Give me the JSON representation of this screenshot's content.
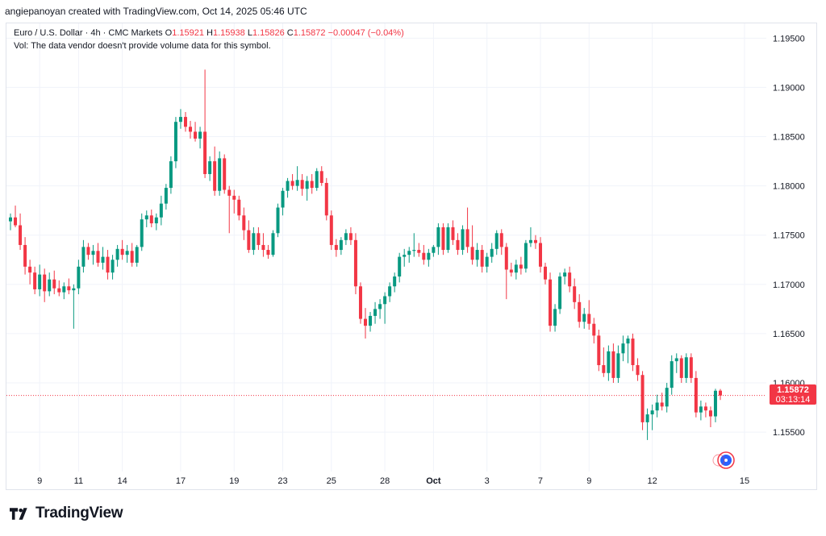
{
  "attribution": "angiepanoyan created with TradingView.com, Oct 14, 2025 05:46 UTC",
  "legend": {
    "symbol": "Euro / U.S. Dollar · 4h · CMC Markets",
    "o_label": "O",
    "o_value": "1.15921",
    "h_label": "H",
    "h_value": "1.15938",
    "l_label": "L",
    "l_value": "1.15826",
    "c_label": "C",
    "c_value": "1.15872",
    "change": "−0.00047 (−0.04%)",
    "volume_note": "Vol: The data vendor doesn't provide volume data for this symbol."
  },
  "price_tag": {
    "price": "1.15872",
    "countdown": "03:13:14"
  },
  "footer": {
    "brand": "TradingView"
  },
  "colors": {
    "up": "#089981",
    "down": "#f23645",
    "grid": "#f0f3fa",
    "text": "#131722"
  },
  "chart_data": {
    "type": "candlestick",
    "ylim": [
      1.151,
      1.1965
    ],
    "x_tick_labels": [
      "9",
      "11",
      "14",
      "17",
      "19",
      "23",
      "25",
      "28",
      "Oct",
      "3",
      "7",
      "9",
      "12",
      "15"
    ],
    "y_tick_labels": [
      "1.15500",
      "1.16000",
      "1.16500",
      "1.17000",
      "1.17500",
      "1.18000",
      "1.18500",
      "1.19000",
      "1.19500"
    ],
    "last_price": 1.15872,
    "candles": [
      {
        "day": "Sep 8",
        "o": 1.1764,
        "h": 1.1772,
        "l": 1.1755,
        "c": 1.1768
      },
      {
        "day": "Sep 8",
        "o": 1.1768,
        "h": 1.178,
        "l": 1.1758,
        "c": 1.176
      },
      {
        "day": "Sep 8",
        "o": 1.176,
        "h": 1.1772,
        "l": 1.1735,
        "c": 1.174
      },
      {
        "day": "Sep 8",
        "o": 1.174,
        "h": 1.1748,
        "l": 1.171,
        "c": 1.1718
      },
      {
        "day": "Sep 8",
        "o": 1.1718,
        "h": 1.1725,
        "l": 1.17,
        "c": 1.1712
      },
      {
        "day": "Sep 8",
        "o": 1.1712,
        "h": 1.1718,
        "l": 1.169,
        "c": 1.1695
      },
      {
        "day": "Sep 9",
        "o": 1.1695,
        "h": 1.172,
        "l": 1.1688,
        "c": 1.171
      },
      {
        "day": "Sep 9",
        "o": 1.171,
        "h": 1.1716,
        "l": 1.1682,
        "c": 1.1693
      },
      {
        "day": "Sep 9",
        "o": 1.1693,
        "h": 1.1712,
        "l": 1.1688,
        "c": 1.1705
      },
      {
        "day": "Sep 9",
        "o": 1.1705,
        "h": 1.1714,
        "l": 1.169,
        "c": 1.1696
      },
      {
        "day": "Sep 10",
        "o": 1.1696,
        "h": 1.1704,
        "l": 1.1688,
        "c": 1.1692
      },
      {
        "day": "Sep 10",
        "o": 1.1692,
        "h": 1.1702,
        "l": 1.1685,
        "c": 1.1698
      },
      {
        "day": "Sep 10",
        "o": 1.1698,
        "h": 1.1706,
        "l": 1.169,
        "c": 1.1694
      },
      {
        "day": "Sep 10",
        "o": 1.1694,
        "h": 1.17,
        "l": 1.1655,
        "c": 1.1696
      },
      {
        "day": "Sep 11",
        "o": 1.1696,
        "h": 1.1725,
        "l": 1.169,
        "c": 1.1718
      },
      {
        "day": "Sep 11",
        "o": 1.1718,
        "h": 1.1745,
        "l": 1.1712,
        "c": 1.1738
      },
      {
        "day": "Sep 11",
        "o": 1.1738,
        "h": 1.1742,
        "l": 1.1725,
        "c": 1.173
      },
      {
        "day": "Sep 11",
        "o": 1.173,
        "h": 1.174,
        "l": 1.172,
        "c": 1.1734
      },
      {
        "day": "Sep 12",
        "o": 1.1734,
        "h": 1.1742,
        "l": 1.1718,
        "c": 1.1722
      },
      {
        "day": "Sep 12",
        "o": 1.1722,
        "h": 1.1738,
        "l": 1.1715,
        "c": 1.1728
      },
      {
        "day": "Sep 12",
        "o": 1.1728,
        "h": 1.1735,
        "l": 1.1705,
        "c": 1.1712
      },
      {
        "day": "Sep 12",
        "o": 1.1712,
        "h": 1.173,
        "l": 1.1705,
        "c": 1.1725
      },
      {
        "day": "Sep 12",
        "o": 1.1725,
        "h": 1.174,
        "l": 1.1718,
        "c": 1.1736
      },
      {
        "day": "Sep 15",
        "o": 1.1736,
        "h": 1.1745,
        "l": 1.1725,
        "c": 1.173
      },
      {
        "day": "Sep 15",
        "o": 1.173,
        "h": 1.174,
        "l": 1.1722,
        "c": 1.1734
      },
      {
        "day": "Sep 15",
        "o": 1.1734,
        "h": 1.1742,
        "l": 1.1718,
        "c": 1.1722
      },
      {
        "day": "Sep 15",
        "o": 1.1722,
        "h": 1.174,
        "l": 1.1718,
        "c": 1.1738
      },
      {
        "day": "Sep 15",
        "o": 1.1738,
        "h": 1.1772,
        "l": 1.1734,
        "c": 1.1766
      },
      {
        "day": "Sep 16",
        "o": 1.1766,
        "h": 1.1775,
        "l": 1.1758,
        "c": 1.177
      },
      {
        "day": "Sep 16",
        "o": 1.177,
        "h": 1.1776,
        "l": 1.1758,
        "c": 1.1762
      },
      {
        "day": "Sep 16",
        "o": 1.1762,
        "h": 1.1772,
        "l": 1.1755,
        "c": 1.1768
      },
      {
        "day": "Sep 16",
        "o": 1.1768,
        "h": 1.179,
        "l": 1.176,
        "c": 1.1782
      },
      {
        "day": "Sep 16",
        "o": 1.1782,
        "h": 1.1802,
        "l": 1.1776,
        "c": 1.1798
      },
      {
        "day": "Sep 16",
        "o": 1.1798,
        "h": 1.183,
        "l": 1.1792,
        "c": 1.1825
      },
      {
        "day": "Sep 16",
        "o": 1.1825,
        "h": 1.187,
        "l": 1.1818,
        "c": 1.1865
      },
      {
        "day": "Sep 17",
        "o": 1.1865,
        "h": 1.1878,
        "l": 1.1858,
        "c": 1.187
      },
      {
        "day": "Sep 17",
        "o": 1.187,
        "h": 1.1875,
        "l": 1.1855,
        "c": 1.186
      },
      {
        "day": "Sep 17",
        "o": 1.186,
        "h": 1.1866,
        "l": 1.1848,
        "c": 1.1855
      },
      {
        "day": "Sep 17",
        "o": 1.1855,
        "h": 1.1865,
        "l": 1.1845,
        "c": 1.1848
      },
      {
        "day": "Sep 17",
        "o": 1.1848,
        "h": 1.186,
        "l": 1.1838,
        "c": 1.1855
      },
      {
        "day": "Sep 17",
        "o": 1.1855,
        "h": 1.1918,
        "l": 1.1808,
        "c": 1.1812
      },
      {
        "day": "Sep 18",
        "o": 1.1812,
        "h": 1.183,
        "l": 1.1805,
        "c": 1.1825
      },
      {
        "day": "Sep 18",
        "o": 1.1825,
        "h": 1.184,
        "l": 1.179,
        "c": 1.1795
      },
      {
        "day": "Sep 18",
        "o": 1.1795,
        "h": 1.1835,
        "l": 1.179,
        "c": 1.1828
      },
      {
        "day": "Sep 18",
        "o": 1.1828,
        "h": 1.1832,
        "l": 1.1792,
        "c": 1.1796
      },
      {
        "day": "Sep 18",
        "o": 1.1796,
        "h": 1.18,
        "l": 1.1752,
        "c": 1.179
      },
      {
        "day": "Sep 19",
        "o": 1.179,
        "h": 1.1796,
        "l": 1.1772,
        "c": 1.1786
      },
      {
        "day": "Sep 19",
        "o": 1.1786,
        "h": 1.179,
        "l": 1.1765,
        "c": 1.177
      },
      {
        "day": "Sep 19",
        "o": 1.177,
        "h": 1.1778,
        "l": 1.1745,
        "c": 1.1755
      },
      {
        "day": "Sep 19",
        "o": 1.1755,
        "h": 1.1765,
        "l": 1.1732,
        "c": 1.1735
      },
      {
        "day": "Sep 19",
        "o": 1.1735,
        "h": 1.1758,
        "l": 1.173,
        "c": 1.1752
      },
      {
        "day": "Sep 22",
        "o": 1.1752,
        "h": 1.1758,
        "l": 1.1735,
        "c": 1.174
      },
      {
        "day": "Sep 22",
        "o": 1.174,
        "h": 1.1752,
        "l": 1.1728,
        "c": 1.1735
      },
      {
        "day": "Sep 22",
        "o": 1.1735,
        "h": 1.174,
        "l": 1.1726,
        "c": 1.173
      },
      {
        "day": "Sep 22",
        "o": 1.173,
        "h": 1.1755,
        "l": 1.1728,
        "c": 1.1752
      },
      {
        "day": "Sep 22",
        "o": 1.1752,
        "h": 1.1782,
        "l": 1.1748,
        "c": 1.1778
      },
      {
        "day": "Sep 23",
        "o": 1.1778,
        "h": 1.1798,
        "l": 1.177,
        "c": 1.1795
      },
      {
        "day": "Sep 23",
        "o": 1.1795,
        "h": 1.1808,
        "l": 1.1788,
        "c": 1.1805
      },
      {
        "day": "Sep 23",
        "o": 1.1805,
        "h": 1.1812,
        "l": 1.1796,
        "c": 1.18
      },
      {
        "day": "Sep 23",
        "o": 1.18,
        "h": 1.182,
        "l": 1.1795,
        "c": 1.1806
      },
      {
        "day": "Sep 23",
        "o": 1.1806,
        "h": 1.1812,
        "l": 1.179,
        "c": 1.1797
      },
      {
        "day": "Sep 24",
        "o": 1.1797,
        "h": 1.181,
        "l": 1.1785,
        "c": 1.1805
      },
      {
        "day": "Sep 24",
        "o": 1.1805,
        "h": 1.1812,
        "l": 1.1792,
        "c": 1.1798
      },
      {
        "day": "Sep 24",
        "o": 1.1798,
        "h": 1.1818,
        "l": 1.1795,
        "c": 1.1815
      },
      {
        "day": "Sep 24",
        "o": 1.1815,
        "h": 1.182,
        "l": 1.18,
        "c": 1.1803
      },
      {
        "day": "Sep 24",
        "o": 1.1803,
        "h": 1.1808,
        "l": 1.1765,
        "c": 1.177
      },
      {
        "day": "Sep 25",
        "o": 1.177,
        "h": 1.1775,
        "l": 1.1735,
        "c": 1.174
      },
      {
        "day": "Sep 25",
        "o": 1.174,
        "h": 1.1746,
        "l": 1.1728,
        "c": 1.1735
      },
      {
        "day": "Sep 25",
        "o": 1.1735,
        "h": 1.1748,
        "l": 1.173,
        "c": 1.1745
      },
      {
        "day": "Sep 25",
        "o": 1.1745,
        "h": 1.1756,
        "l": 1.174,
        "c": 1.1752
      },
      {
        "day": "Sep 25",
        "o": 1.1752,
        "h": 1.1758,
        "l": 1.174,
        "c": 1.1745
      },
      {
        "day": "Sep 25",
        "o": 1.1745,
        "h": 1.1752,
        "l": 1.169,
        "c": 1.1698
      },
      {
        "day": "Sep 26",
        "o": 1.1698,
        "h": 1.1702,
        "l": 1.166,
        "c": 1.1665
      },
      {
        "day": "Sep 26",
        "o": 1.1665,
        "h": 1.1676,
        "l": 1.1645,
        "c": 1.1658
      },
      {
        "day": "Sep 26",
        "o": 1.1658,
        "h": 1.1672,
        "l": 1.1652,
        "c": 1.1668
      },
      {
        "day": "Sep 26",
        "o": 1.1668,
        "h": 1.1682,
        "l": 1.166,
        "c": 1.1675
      },
      {
        "day": "Sep 26",
        "o": 1.1675,
        "h": 1.1685,
        "l": 1.1665,
        "c": 1.168
      },
      {
        "day": "Sep 29",
        "o": 1.168,
        "h": 1.1692,
        "l": 1.166,
        "c": 1.1688
      },
      {
        "day": "Sep 29",
        "o": 1.1688,
        "h": 1.1702,
        "l": 1.1682,
        "c": 1.1698
      },
      {
        "day": "Sep 29",
        "o": 1.1698,
        "h": 1.1712,
        "l": 1.1692,
        "c": 1.1708
      },
      {
        "day": "Sep 29",
        "o": 1.1708,
        "h": 1.1732,
        "l": 1.1702,
        "c": 1.1728
      },
      {
        "day": "Sep 29",
        "o": 1.1728,
        "h": 1.1736,
        "l": 1.1718,
        "c": 1.173
      },
      {
        "day": "Sep 30",
        "o": 1.173,
        "h": 1.1738,
        "l": 1.1722,
        "c": 1.1734
      },
      {
        "day": "Sep 30",
        "o": 1.1734,
        "h": 1.1752,
        "l": 1.1728,
        "c": 1.1735
      },
      {
        "day": "Sep 30",
        "o": 1.1735,
        "h": 1.1742,
        "l": 1.1728,
        "c": 1.1732
      },
      {
        "day": "Sep 30",
        "o": 1.1732,
        "h": 1.174,
        "l": 1.172,
        "c": 1.1725
      },
      {
        "day": "Sep 30",
        "o": 1.1725,
        "h": 1.1736,
        "l": 1.1718,
        "c": 1.1732
      },
      {
        "day": "Oct 1",
        "o": 1.1732,
        "h": 1.174,
        "l": 1.1728,
        "c": 1.1738
      },
      {
        "day": "Oct 1",
        "o": 1.1738,
        "h": 1.1762,
        "l": 1.173,
        "c": 1.1758
      },
      {
        "day": "Oct 1",
        "o": 1.1758,
        "h": 1.1762,
        "l": 1.173,
        "c": 1.1735
      },
      {
        "day": "Oct 1",
        "o": 1.1735,
        "h": 1.1762,
        "l": 1.1732,
        "c": 1.1758
      },
      {
        "day": "Oct 1",
        "o": 1.1758,
        "h": 1.1765,
        "l": 1.174,
        "c": 1.1745
      },
      {
        "day": "Oct 1",
        "o": 1.1745,
        "h": 1.1752,
        "l": 1.173,
        "c": 1.1735
      },
      {
        "day": "Oct 2",
        "o": 1.1735,
        "h": 1.176,
        "l": 1.173,
        "c": 1.1756
      },
      {
        "day": "Oct 2",
        "o": 1.1756,
        "h": 1.1778,
        "l": 1.1732,
        "c": 1.1738
      },
      {
        "day": "Oct 2",
        "o": 1.1738,
        "h": 1.176,
        "l": 1.172,
        "c": 1.1725
      },
      {
        "day": "Oct 2",
        "o": 1.1725,
        "h": 1.1742,
        "l": 1.1718,
        "c": 1.1735
      },
      {
        "day": "Oct 2",
        "o": 1.1735,
        "h": 1.174,
        "l": 1.1712,
        "c": 1.1718
      },
      {
        "day": "Oct 3",
        "o": 1.1718,
        "h": 1.1732,
        "l": 1.1712,
        "c": 1.1728
      },
      {
        "day": "Oct 3",
        "o": 1.1728,
        "h": 1.1742,
        "l": 1.1722,
        "c": 1.1736
      },
      {
        "day": "Oct 3",
        "o": 1.1736,
        "h": 1.1755,
        "l": 1.173,
        "c": 1.1752
      },
      {
        "day": "Oct 3",
        "o": 1.1752,
        "h": 1.1756,
        "l": 1.173,
        "c": 1.1738
      },
      {
        "day": "Oct 3",
        "o": 1.1738,
        "h": 1.1742,
        "l": 1.1685,
        "c": 1.1715
      },
      {
        "day": "Oct 3",
        "o": 1.1715,
        "h": 1.1722,
        "l": 1.1708,
        "c": 1.1712
      },
      {
        "day": "Oct 6",
        "o": 1.1712,
        "h": 1.1725,
        "l": 1.1705,
        "c": 1.172
      },
      {
        "day": "Oct 6",
        "o": 1.172,
        "h": 1.1728,
        "l": 1.171,
        "c": 1.1716
      },
      {
        "day": "Oct 6",
        "o": 1.1716,
        "h": 1.1745,
        "l": 1.1712,
        "c": 1.1742
      },
      {
        "day": "Oct 6",
        "o": 1.1742,
        "h": 1.1758,
        "l": 1.1738,
        "c": 1.1745
      },
      {
        "day": "Oct 6",
        "o": 1.1745,
        "h": 1.175,
        "l": 1.1736,
        "c": 1.1742
      },
      {
        "day": "Oct 7",
        "o": 1.1742,
        "h": 1.1748,
        "l": 1.1712,
        "c": 1.1718
      },
      {
        "day": "Oct 7",
        "o": 1.1718,
        "h": 1.1722,
        "l": 1.17,
        "c": 1.1705
      },
      {
        "day": "Oct 7",
        "o": 1.1705,
        "h": 1.1712,
        "l": 1.1652,
        "c": 1.1658
      },
      {
        "day": "Oct 7",
        "o": 1.1658,
        "h": 1.168,
        "l": 1.1652,
        "c": 1.1675
      },
      {
        "day": "Oct 7",
        "o": 1.1675,
        "h": 1.1712,
        "l": 1.167,
        "c": 1.1708
      },
      {
        "day": "Oct 8",
        "o": 1.1708,
        "h": 1.1716,
        "l": 1.17,
        "c": 1.1712
      },
      {
        "day": "Oct 8",
        "o": 1.1712,
        "h": 1.1718,
        "l": 1.1692,
        "c": 1.1698
      },
      {
        "day": "Oct 8",
        "o": 1.1698,
        "h": 1.1706,
        "l": 1.1675,
        "c": 1.1682
      },
      {
        "day": "Oct 8",
        "o": 1.1682,
        "h": 1.169,
        "l": 1.1656,
        "c": 1.1662
      },
      {
        "day": "Oct 8",
        "o": 1.1662,
        "h": 1.1676,
        "l": 1.1655,
        "c": 1.167
      },
      {
        "day": "Oct 9",
        "o": 1.167,
        "h": 1.1684,
        "l": 1.1654,
        "c": 1.166
      },
      {
        "day": "Oct 9",
        "o": 1.166,
        "h": 1.1666,
        "l": 1.164,
        "c": 1.1648
      },
      {
        "day": "Oct 9",
        "o": 1.1648,
        "h": 1.1654,
        "l": 1.1612,
        "c": 1.1618
      },
      {
        "day": "Oct 9",
        "o": 1.1618,
        "h": 1.1636,
        "l": 1.1606,
        "c": 1.161
      },
      {
        "day": "Oct 9",
        "o": 1.161,
        "h": 1.1638,
        "l": 1.1602,
        "c": 1.1632
      },
      {
        "day": "Oct 9",
        "o": 1.1632,
        "h": 1.164,
        "l": 1.16,
        "c": 1.1605
      },
      {
        "day": "Oct 10",
        "o": 1.1605,
        "h": 1.1638,
        "l": 1.16,
        "c": 1.163
      },
      {
        "day": "Oct 10",
        "o": 1.163,
        "h": 1.1648,
        "l": 1.1622,
        "c": 1.164
      },
      {
        "day": "Oct 10",
        "o": 1.164,
        "h": 1.1648,
        "l": 1.162,
        "c": 1.1645
      },
      {
        "day": "Oct 10",
        "o": 1.1645,
        "h": 1.165,
        "l": 1.1612,
        "c": 1.1618
      },
      {
        "day": "Oct 10",
        "o": 1.1618,
        "h": 1.1625,
        "l": 1.1602,
        "c": 1.1608
      },
      {
        "day": "Oct 10",
        "o": 1.1608,
        "h": 1.1612,
        "l": 1.1552,
        "c": 1.156
      },
      {
        "day": "Oct 10",
        "o": 1.156,
        "h": 1.1574,
        "l": 1.1542,
        "c": 1.1568
      },
      {
        "day": "Oct 13",
        "o": 1.1568,
        "h": 1.1578,
        "l": 1.1552,
        "c": 1.1572
      },
      {
        "day": "Oct 13",
        "o": 1.1572,
        "h": 1.1588,
        "l": 1.1565,
        "c": 1.158
      },
      {
        "day": "Oct 13",
        "o": 1.158,
        "h": 1.159,
        "l": 1.1572,
        "c": 1.1576
      },
      {
        "day": "Oct 13",
        "o": 1.1576,
        "h": 1.16,
        "l": 1.157,
        "c": 1.1595
      },
      {
        "day": "Oct 13",
        "o": 1.1595,
        "h": 1.1628,
        "l": 1.1588,
        "c": 1.1622
      },
      {
        "day": "Oct 13",
        "o": 1.1622,
        "h": 1.163,
        "l": 1.161,
        "c": 1.1625
      },
      {
        "day": "Oct 13",
        "o": 1.1625,
        "h": 1.1628,
        "l": 1.16,
        "c": 1.1605
      },
      {
        "day": "Oct 14",
        "o": 1.1605,
        "h": 1.163,
        "l": 1.16,
        "c": 1.1626
      },
      {
        "day": "Oct 14",
        "o": 1.1626,
        "h": 1.163,
        "l": 1.16,
        "c": 1.1605
      },
      {
        "day": "Oct 14",
        "o": 1.1605,
        "h": 1.1612,
        "l": 1.1565,
        "c": 1.157
      },
      {
        "day": "Oct 14",
        "o": 1.157,
        "h": 1.1582,
        "l": 1.1562,
        "c": 1.1576
      },
      {
        "day": "Oct 14",
        "o": 1.1576,
        "h": 1.158,
        "l": 1.1565,
        "c": 1.1572
      },
      {
        "day": "Oct 14",
        "o": 1.1572,
        "h": 1.1576,
        "l": 1.1555,
        "c": 1.1566
      },
      {
        "day": "Oct 14",
        "o": 1.1566,
        "h": 1.1594,
        "l": 1.156,
        "c": 1.1592
      },
      {
        "day": "Oct 14",
        "o": 1.15921,
        "h": 1.15938,
        "l": 1.15826,
        "c": 1.15872
      }
    ]
  }
}
